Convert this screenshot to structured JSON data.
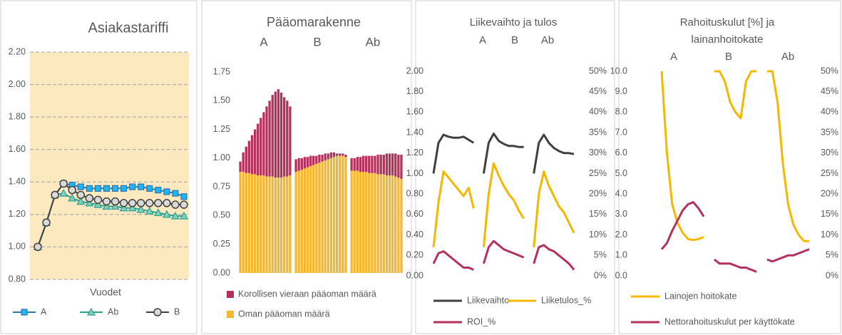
{
  "chart_data": [
    {
      "type": "line",
      "title": "Asiakastariffi",
      "x_label": "Vuodet",
      "ylim": [
        0.8,
        2.2
      ],
      "yticks": [
        {
          "value": 0.8,
          "label": "0.80"
        },
        {
          "value": 1.0,
          "label": "1.00"
        },
        {
          "value": 1.2,
          "label": "1.20"
        },
        {
          "value": 1.4,
          "label": "1.40"
        },
        {
          "value": 1.6,
          "label": "1.60"
        },
        {
          "value": 1.8,
          "label": "1.80"
        },
        {
          "value": 2.0,
          "label": "2.00"
        },
        {
          "value": 2.2,
          "label": "2.20"
        }
      ],
      "grid": true,
      "grid_style": "dashed",
      "background": "#fde9c0",
      "legend": "bottom",
      "series": [
        {
          "name": "A",
          "color": "#2e75b6",
          "marker": "square",
          "marker_color": "#1fb5f0",
          "values": [
            1.0,
            1.15,
            1.32,
            1.39,
            1.38,
            1.37,
            1.36,
            1.36,
            1.36,
            1.36,
            1.36,
            1.37,
            1.37,
            1.36,
            1.35,
            1.34,
            1.33,
            1.31
          ]
        },
        {
          "name": "Ab",
          "color": "#31a08c",
          "marker": "triangle",
          "marker_color": "#7ecfc0",
          "values": [
            1.0,
            1.15,
            1.32,
            1.33,
            1.3,
            1.28,
            1.27,
            1.26,
            1.25,
            1.25,
            1.24,
            1.24,
            1.23,
            1.22,
            1.21,
            1.2,
            1.19,
            1.19
          ]
        },
        {
          "name": "B",
          "color": "#404040",
          "marker": "circle",
          "marker_color": "#d9d9d9",
          "values": [
            1.0,
            1.15,
            1.32,
            1.39,
            1.35,
            1.32,
            1.3,
            1.29,
            1.28,
            1.28,
            1.27,
            1.27,
            1.27,
            1.27,
            1.27,
            1.27,
            1.26,
            1.26
          ]
        }
      ]
    },
    {
      "type": "bar",
      "stacked": true,
      "title": "Pääomarakenne",
      "annotations": [
        "A",
        "B",
        "Ab"
      ],
      "ylim": [
        0,
        1.75
      ],
      "yticks": [
        {
          "value": 0,
          "label": "0.00"
        },
        0.25,
        {
          "value": 0.5,
          "label": "0.50"
        },
        0.75,
        {
          "value": 1.0,
          "label": "1.00"
        },
        1.25,
        {
          "value": 1.5,
          "label": "1.50"
        },
        1.75
      ],
      "legend": "bottom",
      "series": [
        {
          "name": "Korollisen vieraan pääoman määrä",
          "color": "#b5305a",
          "values": [
            0.09,
            0.17,
            0.23,
            0.28,
            0.34,
            0.39,
            0.45,
            0.5,
            0.55,
            0.61,
            0.66,
            0.71,
            0.75,
            0.77,
            0.74,
            0.69,
            0.66,
            0.6,
            null,
            0.11,
            0.11,
            0.1,
            0.1,
            0.09,
            0.09,
            0.08,
            0.07,
            0.07,
            0.06,
            0.06,
            0.05,
            0.05,
            0.04,
            0.02,
            0.02,
            0.02,
            0.02,
            null,
            0.11,
            0.11,
            0.12,
            0.13,
            0.14,
            0.14,
            0.15,
            0.15,
            0.15,
            0.17,
            0.17,
            0.17,
            0.19,
            0.19,
            0.19,
            0.2,
            0.2,
            0.21
          ]
        },
        {
          "name": "Oman pääoman määrä",
          "color": "#f5b731",
          "values": [
            0.88,
            0.88,
            0.87,
            0.87,
            0.86,
            0.86,
            0.85,
            0.85,
            0.85,
            0.84,
            0.84,
            0.84,
            0.83,
            0.83,
            0.83,
            0.84,
            0.84,
            0.85,
            null,
            0.88,
            0.89,
            0.9,
            0.91,
            0.92,
            0.93,
            0.94,
            0.95,
            0.96,
            0.97,
            0.98,
            0.99,
            1.0,
            1.01,
            1.02,
            1.02,
            1.02,
            1.01,
            null,
            0.89,
            0.89,
            0.89,
            0.88,
            0.88,
            0.88,
            0.87,
            0.87,
            0.87,
            0.86,
            0.86,
            0.86,
            0.85,
            0.85,
            0.85,
            0.84,
            0.83,
            0.82
          ]
        }
      ]
    },
    {
      "type": "line",
      "title": "Liikevaihto  ja tulos",
      "annotations": [
        "A",
        "B",
        "Ab"
      ],
      "ylim": [
        0,
        2
      ],
      "yticks": [
        {
          "value": 0,
          "label": "0.00"
        },
        {
          "value": 0.2,
          "label": "0.20"
        },
        {
          "value": 0.4,
          "label": "0.40"
        },
        {
          "value": 0.6,
          "label": "0.60"
        },
        {
          "value": 0.8,
          "label": "0.80"
        },
        {
          "value": 1.0,
          "label": "1.00"
        },
        {
          "value": 1.2,
          "label": "1.20"
        },
        {
          "value": 1.4,
          "label": "1.40"
        },
        {
          "value": 1.6,
          "label": "1.60"
        },
        {
          "value": 1.8,
          "label": "1.80"
        },
        {
          "value": 2.0,
          "label": "2.00"
        }
      ],
      "y2lim": [
        0,
        50
      ],
      "y2ticks": [
        {
          "value": 0,
          "label": "0%"
        },
        {
          "value": 5,
          "label": "5%"
        },
        {
          "value": 10,
          "label": "10%"
        },
        {
          "value": 15,
          "label": "15%"
        },
        {
          "value": 20,
          "label": "20%"
        },
        {
          "value": 25,
          "label": "25%"
        },
        {
          "value": 30,
          "label": "30%"
        },
        {
          "value": 35,
          "label": "35%"
        },
        {
          "value": 40,
          "label": "40%"
        },
        {
          "value": 45,
          "label": "45%"
        },
        {
          "value": 50,
          "label": "50%"
        }
      ],
      "legend": "bottom",
      "series": [
        {
          "name": "Liikevaihto",
          "color": "#404040",
          "values": [
            1.0,
            1.3,
            1.38,
            1.36,
            1.35,
            1.35,
            1.36,
            1.33,
            1.3,
            null,
            1.0,
            1.3,
            1.39,
            1.32,
            1.29,
            1.27,
            1.27,
            1.26,
            1.26,
            null,
            1.0,
            1.3,
            1.38,
            1.3,
            1.25,
            1.22,
            1.2,
            1.2,
            1.19
          ]
        },
        {
          "name": "Liiketulos_%",
          "color": "#f5b800",
          "axis": "y2",
          "values": [
            7,
            18,
            25.5,
            24,
            22.5,
            21,
            19.5,
            21.5,
            16.5,
            null,
            7,
            20,
            27.5,
            24.5,
            22,
            20,
            18.5,
            16,
            14,
            null,
            7,
            20,
            25.5,
            22,
            19.5,
            17,
            15.5,
            13,
            10.5
          ]
        },
        {
          "name": "ROI_%",
          "color": "#b5305a",
          "axis": "y2",
          "values": [
            3,
            5.5,
            6,
            5,
            4,
            3,
            2,
            2,
            1.5,
            null,
            3,
            7,
            8.5,
            7.5,
            6.5,
            6,
            5.5,
            5,
            4.5,
            null,
            3,
            7,
            7.5,
            6.5,
            6,
            5,
            4,
            3,
            1.5
          ]
        }
      ]
    },
    {
      "type": "line",
      "title": [
        "Rahoituskulut [%] ja",
        "lainanhoitokate"
      ],
      "annotations": [
        "A",
        "B",
        "Ab"
      ],
      "ylim": [
        0,
        10
      ],
      "yticks": [
        {
          "value": 0,
          "label": "0.0"
        },
        {
          "value": 1,
          "label": "1.0"
        },
        {
          "value": 2,
          "label": "2.0"
        },
        {
          "value": 3,
          "label": "3.0"
        },
        {
          "value": 4,
          "label": "4.0"
        },
        {
          "value": 5,
          "label": "5.0"
        },
        {
          "value": 6,
          "label": "6.0"
        },
        {
          "value": 7,
          "label": "7.0"
        },
        {
          "value": 8,
          "label": "8.0"
        },
        {
          "value": 9,
          "label": "9.0"
        },
        {
          "value": 10,
          "label": "10.0"
        }
      ],
      "y2lim": [
        0,
        50
      ],
      "y2ticks": [
        {
          "value": 0,
          "label": "0%"
        },
        {
          "value": 5,
          "label": "5%"
        },
        {
          "value": 10,
          "label": "10%"
        },
        {
          "value": 15,
          "label": "15%"
        },
        {
          "value": 20,
          "label": "20%"
        },
        {
          "value": 25,
          "label": "25%"
        },
        {
          "value": 30,
          "label": "30%"
        },
        {
          "value": 35,
          "label": "35%"
        },
        {
          "value": 40,
          "label": "40%"
        },
        {
          "value": 45,
          "label": "45%"
        },
        {
          "value": 50,
          "label": "50%"
        }
      ],
      "legend": "bottom",
      "series": [
        {
          "name": "Lainojen hoitokate",
          "color": "#f5b800",
          "values": [
            10.0,
            6.0,
            3.5,
            2.6,
            2.1,
            1.8,
            1.75,
            1.8,
            1.9,
            null,
            10.0,
            10.0,
            9.5,
            8.5,
            8.0,
            7.7,
            9.5,
            10.0,
            10.0,
            null,
            10.0,
            10.0,
            8.5,
            5.5,
            3.5,
            2.5,
            2.0,
            1.7,
            1.7
          ]
        },
        {
          "name": "Nettorahoituskulut per käyttökate",
          "color": "#b5305a",
          "axis": "y2",
          "values": [
            6.5,
            8,
            11,
            13.5,
            16,
            17.5,
            18,
            16.5,
            14.5,
            null,
            4,
            3,
            3,
            3,
            2.5,
            2,
            2,
            1.5,
            1,
            null,
            4,
            3.5,
            4,
            4.5,
            5,
            5,
            5.5,
            6,
            6.5
          ]
        }
      ]
    }
  ]
}
